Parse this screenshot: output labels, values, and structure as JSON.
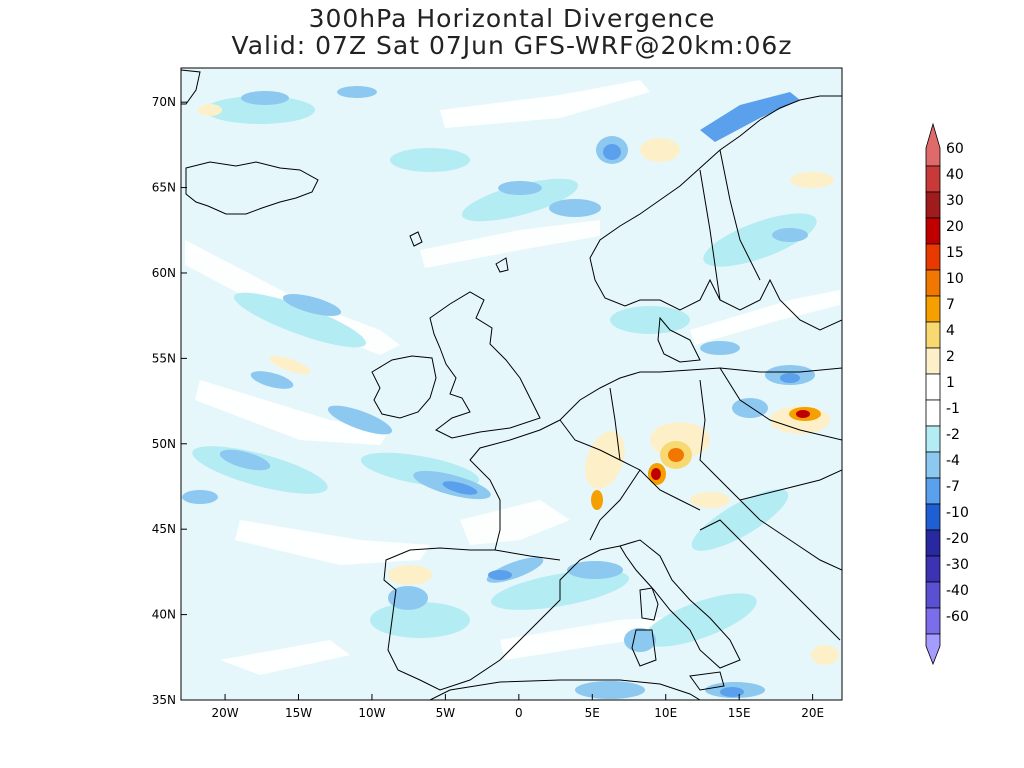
{
  "title": {
    "line1": "300hPa Horizontal Divergence",
    "line2": "Valid: 07Z Sat 07Jun GFS-WRF@20km:06z"
  },
  "map": {
    "lon_range": [
      -23,
      22
    ],
    "lat_range": [
      35,
      72
    ],
    "lat_ticks": [
      {
        "value": 70,
        "label": "70N"
      },
      {
        "value": 65,
        "label": "65N"
      },
      {
        "value": 60,
        "label": "60N"
      },
      {
        "value": 55,
        "label": "55N"
      },
      {
        "value": 50,
        "label": "50N"
      },
      {
        "value": 45,
        "label": "45N"
      },
      {
        "value": 40,
        "label": "40N"
      },
      {
        "value": 35,
        "label": "35N"
      }
    ],
    "lon_ticks": [
      {
        "value": -20,
        "label": "20W"
      },
      {
        "value": -15,
        "label": "15W"
      },
      {
        "value": -10,
        "label": "10W"
      },
      {
        "value": -5,
        "label": "5W"
      },
      {
        "value": 0,
        "label": "0"
      },
      {
        "value": 5,
        "label": "5E"
      },
      {
        "value": 10,
        "label": "10E"
      },
      {
        "value": 15,
        "label": "15E"
      },
      {
        "value": 20,
        "label": "20E"
      }
    ],
    "background_color": "#e6f7fc",
    "coast_color": "#000000"
  },
  "colorbar": {
    "levels": [
      "60",
      "40",
      "30",
      "20",
      "15",
      "10",
      "7",
      "4",
      "2",
      "1",
      "-1",
      "-2",
      "-4",
      "-7",
      "-10",
      "-20",
      "-30",
      "-40",
      "-60"
    ],
    "colors": [
      "#e06a6a",
      "#c83a3a",
      "#a01c1c",
      "#c00000",
      "#e83a00",
      "#f07800",
      "#f5a000",
      "#f8d870",
      "#fdf0c8",
      "#ffffff",
      "#ffffff",
      "#b4ecf4",
      "#8cc8f0",
      "#5aa0ec",
      "#1e60d4",
      "#2828a0",
      "#3c32b4",
      "#5a50d2",
      "#7c6eea",
      "#a59cff"
    ]
  },
  "features": {
    "divergence_max": [
      {
        "lon": 9.7,
        "lat": 48.3,
        "value": 15
      },
      {
        "lon": 11.3,
        "lat": 49.3,
        "value": 10
      },
      {
        "lon": 19.5,
        "lat": 51.8,
        "value": 15
      },
      {
        "lon": 5.5,
        "lat": 46.6,
        "value": 7
      }
    ]
  }
}
